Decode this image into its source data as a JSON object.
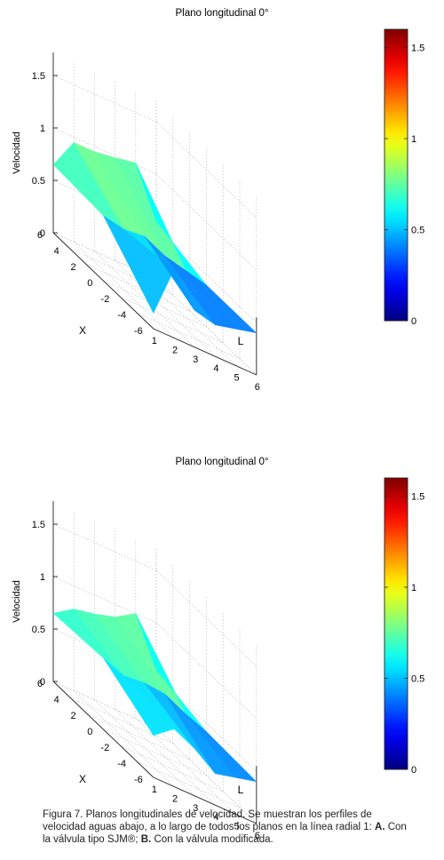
{
  "chart_data": [
    {
      "type": "surface",
      "title": "Plano longitudinal 0°",
      "xlabel": "L",
      "ylabel": "X",
      "zlabel": "Velocidad",
      "L_ticks": [
        "1",
        "2",
        "3",
        "4",
        "5",
        "6"
      ],
      "X_ticks": [
        "-6",
        "-4",
        "-2",
        "0",
        "2",
        "4",
        "6"
      ],
      "z_ticks": [
        "0",
        "0.5",
        "1",
        "1.5"
      ],
      "zlim": [
        0,
        1.5
      ],
      "colorbar": {
        "ticks": [
          "0",
          "0.5",
          "1",
          "1.5"
        ],
        "range": [
          0,
          1.6
        ],
        "colormap": "jet"
      },
      "L": [
        1,
        2,
        3,
        4,
        5,
        6
      ],
      "X": [
        6,
        0,
        -6
      ],
      "Z": [
        [
          0.65,
          0.95,
          0.95,
          0.98,
          1.02,
          0.55
        ],
        [
          0.62,
          0.58,
          0.6,
          0.5,
          0.45,
          0.4
        ],
        [
          0.15,
          0.65,
          0.35,
          0.3,
          0.35,
          0.4
        ]
      ]
    },
    {
      "type": "surface",
      "title": "Plano longitudinal 0°",
      "xlabel": "L",
      "ylabel": "X",
      "zlabel": "Velocidad",
      "L_ticks": [
        "1",
        "2",
        "3",
        "4",
        "5",
        "6"
      ],
      "X_ticks": [
        "-6",
        "-4",
        "-2",
        "0",
        "2",
        "4",
        "6"
      ],
      "z_ticks": [
        "0",
        "0.5",
        "1",
        "1.5"
      ],
      "zlim": [
        0,
        1.5
      ],
      "colorbar": {
        "ticks": [
          "0",
          "0.5",
          "1",
          "1.5"
        ],
        "range": [
          0,
          1.6
        ],
        "colormap": "jet"
      },
      "L": [
        1,
        2,
        3,
        4,
        5,
        6
      ],
      "X": [
        6,
        0,
        -6
      ],
      "Z": [
        [
          0.65,
          0.78,
          0.82,
          0.88,
          1.0,
          0.55
        ],
        [
          0.68,
          0.6,
          0.62,
          0.6,
          0.5,
          0.42
        ],
        [
          0.4,
          0.55,
          0.45,
          0.3,
          0.35,
          0.4
        ]
      ]
    }
  ],
  "caption": {
    "label": "Figura 7.",
    "text": " Planos longitudinales de velocidad. Se muestran los perfiles de velocidad aguas abajo, a lo largo de todos los planos en la línea radial 1: ",
    "a_label": "A.",
    "a_text": " Con la válvula tipo SJM®; ",
    "b_label": "B.",
    "b_text": " Con la válvula modificada."
  }
}
